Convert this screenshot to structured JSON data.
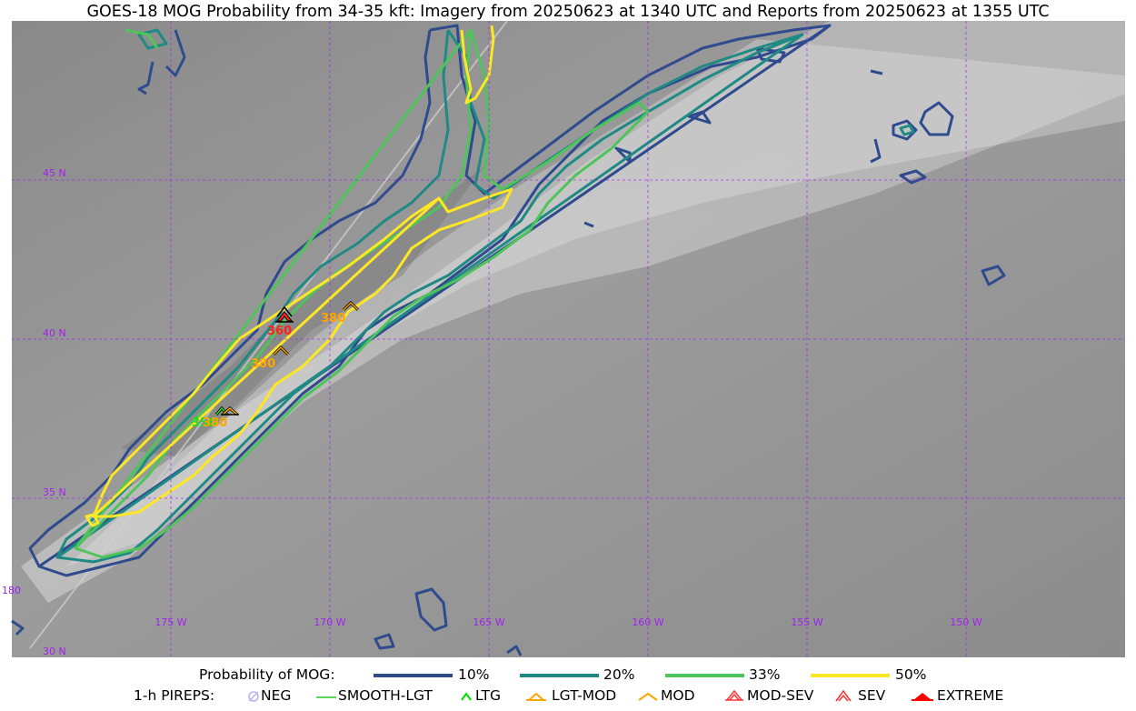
{
  "title": "GOES-18 MOG Probability from 34-35 kft: Imagery from 20250623 at 1340 UTC and Reports from 20250623 at 1355 UTC",
  "map": {
    "lat_labels": [
      "45 N",
      "40 N",
      "35 N",
      "30 N"
    ],
    "lon_labels": [
      "175 W",
      "170 W",
      "165 W",
      "160 W",
      "155 W",
      "150 W"
    ],
    "edge_label": "180",
    "grid_color": "#a020f0",
    "pirep_reports": [
      {
        "altitude": "360",
        "type": "SEV",
        "color": "#ff2020"
      },
      {
        "altitude": "380",
        "type": "MOD",
        "color": "#ffa500"
      },
      {
        "altitude": "380",
        "type": "MOD",
        "color": "#ffa500"
      },
      {
        "altitude": "350",
        "type": "LTG",
        "color": "#22dd22"
      },
      {
        "altitude": "380",
        "type": "LGT-MOD",
        "color": "#ffa500"
      }
    ]
  },
  "legend": {
    "probability_label": "Probability of MOG:",
    "probability_levels": [
      {
        "label": "10%",
        "color": "#2f4b8e"
      },
      {
        "label": "20%",
        "color": "#1f8a84"
      },
      {
        "label": "33%",
        "color": "#4ec45a"
      },
      {
        "label": "50%",
        "color": "#fde725"
      }
    ],
    "pireps_label": "1-h PIREPS:",
    "pirep_types": [
      {
        "label": "NEG",
        "color": "#b9b2f5",
        "icon": "neg-icon"
      },
      {
        "label": "SMOOTH-LGT",
        "color": "#22cc22",
        "icon": "smooth-lgt-icon"
      },
      {
        "label": "LTG",
        "color": "#00dd00",
        "icon": "ltg-icon"
      },
      {
        "label": "LGT-MOD",
        "color": "#ffa500",
        "icon": "lgt-mod-icon"
      },
      {
        "label": "MOD",
        "color": "#ffa500",
        "icon": "mod-icon"
      },
      {
        "label": "MOD-SEV",
        "color": "#ff3030",
        "icon": "mod-sev-icon"
      },
      {
        "label": "SEV",
        "color": "#ff3030",
        "icon": "sev-icon"
      },
      {
        "label": "EXTREME",
        "color": "#ff0000",
        "icon": "extreme-icon"
      }
    ]
  }
}
